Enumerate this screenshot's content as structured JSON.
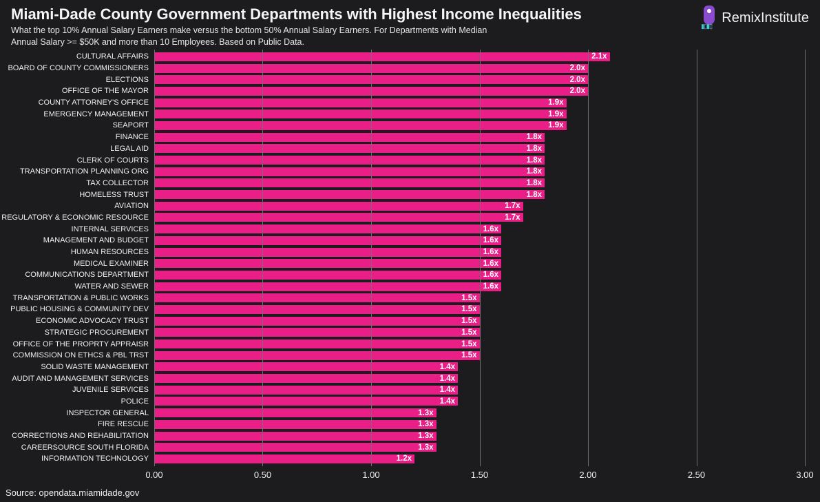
{
  "header": {
    "title": "Miami-Dade County Government Departments with Highest Income Inequalities",
    "subtitle": "What the top 10% Annual Salary Earners make versus the bottom 50% Annual Salary Earners. For Departments with Median Annual Salary >= $50K and more than 10 Employees. Based on Public Data."
  },
  "brand": {
    "name": "RemixInstitute"
  },
  "source": "Source: opendata.miamidade.gov",
  "chart": {
    "type": "bar-horizontal",
    "xlim": [
      0,
      3.0
    ],
    "xtick_step": 0.5,
    "xticks": [
      "0.00",
      "0.50",
      "1.00",
      "1.50",
      "2.00",
      "2.50",
      "3.00"
    ],
    "bar_color": "#e91e87",
    "grid_color": "#707070",
    "background_color": "#1c1c1e",
    "text_color": "#f0f0f0",
    "label_fontsize": 11,
    "value_fontsize": 11.5,
    "tick_fontsize": 13,
    "data": [
      {
        "label": "CULTURAL AFFAIRS",
        "value": 2.1,
        "text": "2.1x"
      },
      {
        "label": "BOARD OF COUNTY COMMISSIONERS",
        "value": 2.0,
        "text": "2.0x"
      },
      {
        "label": "ELECTIONS",
        "value": 2.0,
        "text": "2.0x"
      },
      {
        "label": "OFFICE OF THE MAYOR",
        "value": 2.0,
        "text": "2.0x"
      },
      {
        "label": "COUNTY ATTORNEY'S OFFICE",
        "value": 1.9,
        "text": "1.9x"
      },
      {
        "label": "EMERGENCY MANAGEMENT",
        "value": 1.9,
        "text": "1.9x"
      },
      {
        "label": "SEAPORT",
        "value": 1.9,
        "text": "1.9x"
      },
      {
        "label": "FINANCE",
        "value": 1.8,
        "text": "1.8x"
      },
      {
        "label": "LEGAL AID",
        "value": 1.8,
        "text": "1.8x"
      },
      {
        "label": "CLERK OF COURTS",
        "value": 1.8,
        "text": "1.8x"
      },
      {
        "label": "TRANSPORTATION PLANNING ORG",
        "value": 1.8,
        "text": "1.8x"
      },
      {
        "label": "TAX COLLECTOR",
        "value": 1.8,
        "text": "1.8x"
      },
      {
        "label": "HOMELESS TRUST",
        "value": 1.8,
        "text": "1.8x"
      },
      {
        "label": "AVIATION",
        "value": 1.7,
        "text": "1.7x"
      },
      {
        "label": "REGULATORY & ECONOMIC RESOURCE",
        "value": 1.7,
        "text": "1.7x"
      },
      {
        "label": "INTERNAL SERVICES",
        "value": 1.6,
        "text": "1.6x"
      },
      {
        "label": "MANAGEMENT AND BUDGET",
        "value": 1.6,
        "text": "1.6x"
      },
      {
        "label": "HUMAN RESOURCES",
        "value": 1.6,
        "text": "1.6x"
      },
      {
        "label": "MEDICAL EXAMINER",
        "value": 1.6,
        "text": "1.6x"
      },
      {
        "label": "COMMUNICATIONS DEPARTMENT",
        "value": 1.6,
        "text": "1.6x"
      },
      {
        "label": "WATER AND SEWER",
        "value": 1.6,
        "text": "1.6x"
      },
      {
        "label": "TRANSPORTATION & PUBLIC WORKS",
        "value": 1.5,
        "text": "1.5x"
      },
      {
        "label": "PUBLIC HOUSING & COMMUNITY DEV",
        "value": 1.5,
        "text": "1.5x"
      },
      {
        "label": "ECONOMIC ADVOCACY TRUST",
        "value": 1.5,
        "text": "1.5x"
      },
      {
        "label": "STRATEGIC PROCUREMENT",
        "value": 1.5,
        "text": "1.5x"
      },
      {
        "label": "OFFICE OF THE PROPRTY APPRAISR",
        "value": 1.5,
        "text": "1.5x"
      },
      {
        "label": "COMMISSION ON ETHCS & PBL TRST",
        "value": 1.5,
        "text": "1.5x"
      },
      {
        "label": "SOLID WASTE MANAGEMENT",
        "value": 1.4,
        "text": "1.4x"
      },
      {
        "label": "AUDIT AND MANAGEMENT SERVICES",
        "value": 1.4,
        "text": "1.4x"
      },
      {
        "label": "JUVENILE SERVICES",
        "value": 1.4,
        "text": "1.4x"
      },
      {
        "label": "POLICE",
        "value": 1.4,
        "text": "1.4x"
      },
      {
        "label": "INSPECTOR GENERAL",
        "value": 1.3,
        "text": "1.3x"
      },
      {
        "label": "FIRE RESCUE",
        "value": 1.3,
        "text": "1.3x"
      },
      {
        "label": "CORRECTIONS AND REHABILITATION",
        "value": 1.3,
        "text": "1.3x"
      },
      {
        "label": "CAREERSOURCE SOUTH FLORIDA",
        "value": 1.3,
        "text": "1.3x"
      },
      {
        "label": "INFORMATION TECHNOLOGY",
        "value": 1.2,
        "text": "1.2x"
      }
    ]
  }
}
